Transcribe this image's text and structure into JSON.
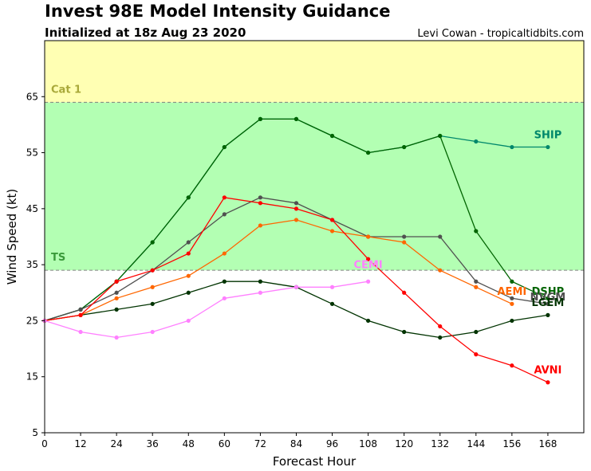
{
  "header": {
    "title": "Invest 98E Model Intensity Guidance",
    "subtitle": "Initialized at 18z Aug 23 2020",
    "credit": "Levi Cowan - tropicaltidbits.com"
  },
  "chart_data": {
    "type": "line",
    "xlabel": "Forecast Hour",
    "ylabel": "Wind Speed (kt)",
    "xlim": [
      0,
      180
    ],
    "ylim": [
      5,
      75
    ],
    "xticks": [
      0,
      12,
      24,
      36,
      48,
      60,
      72,
      84,
      96,
      108,
      120,
      132,
      144,
      156,
      168
    ],
    "yticks": [
      5,
      15,
      25,
      35,
      45,
      55,
      65
    ],
    "bands": [
      {
        "label": "TS",
        "from": 34,
        "to": 64,
        "color": "#b3ffb3",
        "label_color": "#3a9a3a"
      },
      {
        "label": "Cat 1",
        "from": 64,
        "to": 75,
        "color": "#ffffb3",
        "label_color": "#a9a93a"
      }
    ],
    "series": [
      {
        "name": "SHIP",
        "color": "#00876b",
        "label_x": 168,
        "label_y": 57.6,
        "points": [
          [
            0,
            25
          ],
          [
            12,
            27
          ],
          [
            24,
            32
          ],
          [
            36,
            39
          ],
          [
            48,
            47
          ],
          [
            60,
            56
          ],
          [
            72,
            61
          ],
          [
            84,
            61
          ],
          [
            96,
            58
          ],
          [
            108,
            55
          ],
          [
            120,
            56
          ],
          [
            132,
            58
          ],
          [
            144,
            57
          ],
          [
            156,
            56
          ],
          [
            168,
            56
          ]
        ]
      },
      {
        "name": "DSHP",
        "color": "#006400",
        "label_x": 168,
        "label_y": 29.6,
        "points": [
          [
            0,
            25
          ],
          [
            12,
            27
          ],
          [
            24,
            32
          ],
          [
            36,
            39
          ],
          [
            48,
            47
          ],
          [
            60,
            56
          ],
          [
            72,
            61
          ],
          [
            84,
            61
          ],
          [
            96,
            58
          ],
          [
            108,
            55
          ],
          [
            120,
            56
          ],
          [
            132,
            58
          ],
          [
            144,
            41
          ],
          [
            156,
            32
          ],
          [
            168,
            29
          ]
        ]
      },
      {
        "name": "NVGM",
        "color": "#505050",
        "label_x": 168,
        "label_y": 28.6,
        "points": [
          [
            0,
            25
          ],
          [
            12,
            27
          ],
          [
            24,
            30
          ],
          [
            36,
            34
          ],
          [
            48,
            39
          ],
          [
            60,
            44
          ],
          [
            72,
            47
          ],
          [
            84,
            46
          ],
          [
            96,
            43
          ],
          [
            108,
            40
          ],
          [
            120,
            40
          ],
          [
            132,
            40
          ],
          [
            144,
            32
          ],
          [
            156,
            29
          ],
          [
            168,
            28
          ]
        ]
      },
      {
        "name": "LGEM",
        "color": "#003300",
        "label_x": 168,
        "label_y": 27.6,
        "points": [
          [
            0,
            25
          ],
          [
            12,
            26
          ],
          [
            24,
            27
          ],
          [
            36,
            28
          ],
          [
            48,
            30
          ],
          [
            60,
            32
          ],
          [
            72,
            32
          ],
          [
            84,
            31
          ],
          [
            96,
            28
          ],
          [
            108,
            25
          ],
          [
            120,
            23
          ],
          [
            132,
            22
          ],
          [
            144,
            23
          ],
          [
            156,
            25
          ],
          [
            168,
            26
          ]
        ]
      },
      {
        "name": "AEMI",
        "color": "#ff6600",
        "label_x": 156,
        "label_y": 29.6,
        "points": [
          [
            0,
            25
          ],
          [
            12,
            26
          ],
          [
            24,
            29
          ],
          [
            36,
            31
          ],
          [
            48,
            33
          ],
          [
            60,
            37
          ],
          [
            72,
            42
          ],
          [
            84,
            43
          ],
          [
            96,
            41
          ],
          [
            108,
            40
          ],
          [
            120,
            39
          ],
          [
            132,
            34
          ],
          [
            144,
            31
          ],
          [
            156,
            28
          ]
        ]
      },
      {
        "name": "AVNI",
        "color": "#ff0000",
        "label_x": 168,
        "label_y": 15.6,
        "points": [
          [
            0,
            25
          ],
          [
            12,
            26
          ],
          [
            24,
            32
          ],
          [
            36,
            34
          ],
          [
            48,
            37
          ],
          [
            60,
            47
          ],
          [
            72,
            46
          ],
          [
            84,
            45
          ],
          [
            96,
            43
          ],
          [
            108,
            36
          ],
          [
            120,
            30
          ],
          [
            132,
            24
          ],
          [
            144,
            19
          ],
          [
            156,
            17
          ],
          [
            168,
            14
          ]
        ]
      },
      {
        "name": "CEMI",
        "color": "#ff80ff",
        "label_x": 108,
        "label_y": 34.4,
        "points": [
          [
            0,
            25
          ],
          [
            12,
            23
          ],
          [
            24,
            22
          ],
          [
            36,
            23
          ],
          [
            48,
            25
          ],
          [
            60,
            29
          ],
          [
            72,
            30
          ],
          [
            84,
            31
          ],
          [
            96,
            31
          ],
          [
            108,
            32
          ]
        ]
      }
    ]
  }
}
